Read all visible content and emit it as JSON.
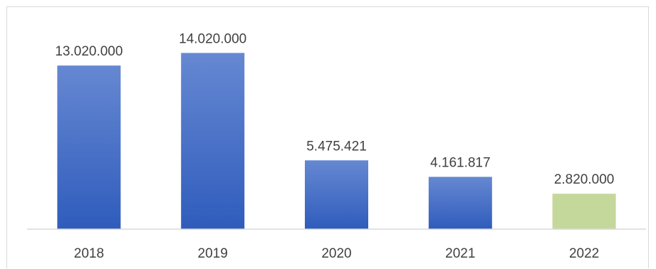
{
  "chart_data": {
    "type": "bar",
    "categories": [
      "2018",
      "2019",
      "2020",
      "2021",
      "2022"
    ],
    "values": [
      13020000,
      14020000,
      5475421,
      4161817,
      2820000
    ],
    "value_labels": [
      "13.020.000",
      "14.020.000",
      "5.475.421",
      "4.161.817",
      "2.820.000"
    ],
    "title": "",
    "xlabel": "",
    "ylabel": "",
    "ylim": [
      0,
      15000000
    ],
    "grid": false,
    "legend": "none",
    "colors": {
      "bar_gradient_top": "#6688d2",
      "bar_gradient_bottom": "#2f5cbc",
      "highlight_bar": "#c5d89b",
      "axis": "#d9d9d9",
      "text": "#404040"
    },
    "highlight_index": 4
  }
}
